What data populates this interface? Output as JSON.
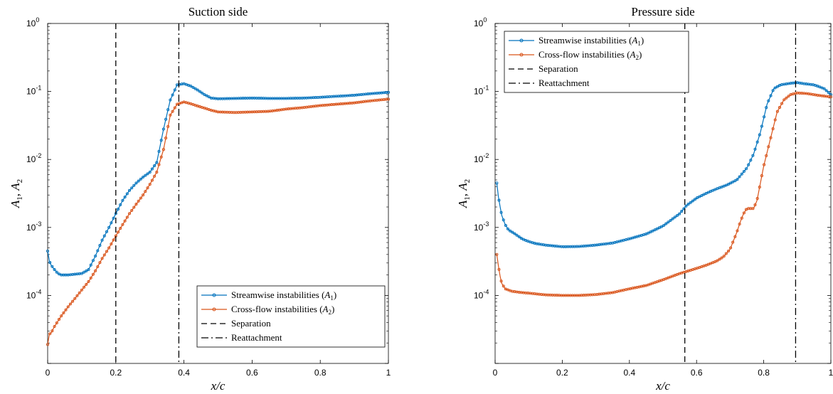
{
  "chart_data": [
    {
      "type": "line",
      "title": "Suction side",
      "xlabel": "x/c",
      "ylabel": "A1, A2",
      "xlim": [
        0,
        1
      ],
      "ylim": [
        1e-05,
        1
      ],
      "yscale": "log",
      "xticks": [
        "0",
        "0.2",
        "0.4",
        "0.6",
        "0.8",
        "1"
      ],
      "yticks": [
        {
          "base": "10",
          "exp": "-4"
        },
        {
          "base": "10",
          "exp": "-3"
        },
        {
          "base": "10",
          "exp": "-2"
        },
        {
          "base": "10",
          "exp": "-1"
        },
        {
          "base": "10",
          "exp": "0"
        }
      ],
      "legend_position": "bottom-right",
      "series": [
        {
          "name": "Streamwise instabilities (A1)",
          "color": "#0072BD",
          "points": [
            [
              0,
              0.00045
            ],
            [
              0.005,
              0.00032
            ],
            [
              0.01,
              0.00028
            ],
            [
              0.02,
              0.00024
            ],
            [
              0.03,
              0.00021
            ],
            [
              0.04,
              0.0002
            ],
            [
              0.06,
              0.0002
            ],
            [
              0.08,
              0.000205
            ],
            [
              0.1,
              0.00021
            ],
            [
              0.12,
              0.00024
            ],
            [
              0.14,
              0.00038
            ],
            [
              0.16,
              0.00065
            ],
            [
              0.18,
              0.001
            ],
            [
              0.2,
              0.0016
            ],
            [
              0.22,
              0.0025
            ],
            [
              0.24,
              0.0035
            ],
            [
              0.26,
              0.0045
            ],
            [
              0.28,
              0.0055
            ],
            [
              0.3,
              0.0065
            ],
            [
              0.32,
              0.009
            ],
            [
              0.34,
              0.028
            ],
            [
              0.36,
              0.075
            ],
            [
              0.38,
              0.125
            ],
            [
              0.4,
              0.13
            ],
            [
              0.42,
              0.12
            ],
            [
              0.44,
              0.105
            ],
            [
              0.46,
              0.09
            ],
            [
              0.48,
              0.08
            ],
            [
              0.5,
              0.078
            ],
            [
              0.55,
              0.079
            ],
            [
              0.6,
              0.08
            ],
            [
              0.65,
              0.079
            ],
            [
              0.7,
              0.079
            ],
            [
              0.75,
              0.08
            ],
            [
              0.8,
              0.082
            ],
            [
              0.85,
              0.085
            ],
            [
              0.9,
              0.088
            ],
            [
              0.95,
              0.093
            ],
            [
              1,
              0.097
            ]
          ]
        },
        {
          "name": "Cross-flow instabilities (A2)",
          "color": "#D95319",
          "points": [
            [
              0,
              1.9e-05
            ],
            [
              0.005,
              2.7e-05
            ],
            [
              0.01,
              2.8e-05
            ],
            [
              0.02,
              3.5e-05
            ],
            [
              0.04,
              5e-05
            ],
            [
              0.06,
              6.8e-05
            ],
            [
              0.08,
              9e-05
            ],
            [
              0.1,
              0.00012
            ],
            [
              0.12,
              0.00016
            ],
            [
              0.14,
              0.00023
            ],
            [
              0.16,
              0.00035
            ],
            [
              0.18,
              0.0005
            ],
            [
              0.2,
              0.00075
            ],
            [
              0.22,
              0.0011
            ],
            [
              0.24,
              0.0016
            ],
            [
              0.26,
              0.0022
            ],
            [
              0.28,
              0.003
            ],
            [
              0.3,
              0.0043
            ],
            [
              0.32,
              0.0065
            ],
            [
              0.34,
              0.014
            ],
            [
              0.36,
              0.045
            ],
            [
              0.38,
              0.065
            ],
            [
              0.4,
              0.07
            ],
            [
              0.42,
              0.066
            ],
            [
              0.44,
              0.061
            ],
            [
              0.46,
              0.057
            ],
            [
              0.48,
              0.053
            ],
            [
              0.5,
              0.05
            ],
            [
              0.55,
              0.049
            ],
            [
              0.6,
              0.05
            ],
            [
              0.65,
              0.051
            ],
            [
              0.7,
              0.055
            ],
            [
              0.75,
              0.058
            ],
            [
              0.8,
              0.062
            ],
            [
              0.85,
              0.065
            ],
            [
              0.9,
              0.068
            ],
            [
              0.95,
              0.073
            ],
            [
              1,
              0.077
            ]
          ]
        },
        {
          "name": "Separation",
          "style": "dashed",
          "x": 0.2
        },
        {
          "name": "Reattachment",
          "style": "dashdot",
          "x": 0.385
        }
      ]
    },
    {
      "type": "line",
      "title": "Pressure side",
      "xlabel": "x/c",
      "ylabel": "A1, A2",
      "xlim": [
        0,
        1
      ],
      "ylim": [
        1e-05,
        1
      ],
      "yscale": "log",
      "xticks": [
        "0",
        "0.2",
        "0.4",
        "0.6",
        "0.8",
        "1"
      ],
      "yticks": [
        {
          "base": "10",
          "exp": "-4"
        },
        {
          "base": "10",
          "exp": "-3"
        },
        {
          "base": "10",
          "exp": "-2"
        },
        {
          "base": "10",
          "exp": "-1"
        },
        {
          "base": "10",
          "exp": "0"
        }
      ],
      "legend_position": "top-left",
      "series": [
        {
          "name": "Streamwise instabilities (A1)",
          "color": "#0072BD",
          "points": [
            [
              0.005,
              0.0045
            ],
            [
              0.01,
              0.0028
            ],
            [
              0.015,
              0.002
            ],
            [
              0.02,
              0.0015
            ],
            [
              0.03,
              0.0011
            ],
            [
              0.04,
              0.00092
            ],
            [
              0.06,
              0.0008
            ],
            [
              0.08,
              0.00068
            ],
            [
              0.1,
              0.00062
            ],
            [
              0.12,
              0.00058
            ],
            [
              0.15,
              0.00055
            ],
            [
              0.2,
              0.00052
            ],
            [
              0.25,
              0.000525
            ],
            [
              0.3,
              0.00055
            ],
            [
              0.35,
              0.00059
            ],
            [
              0.4,
              0.00068
            ],
            [
              0.45,
              0.0008
            ],
            [
              0.5,
              0.00105
            ],
            [
              0.55,
              0.0016
            ],
            [
              0.57,
              0.0021
            ],
            [
              0.6,
              0.0027
            ],
            [
              0.63,
              0.0032
            ],
            [
              0.66,
              0.0037
            ],
            [
              0.69,
              0.0042
            ],
            [
              0.72,
              0.005
            ],
            [
              0.75,
              0.0075
            ],
            [
              0.77,
              0.012
            ],
            [
              0.79,
              0.025
            ],
            [
              0.81,
              0.065
            ],
            [
              0.83,
              0.11
            ],
            [
              0.85,
              0.125
            ],
            [
              0.88,
              0.132
            ],
            [
              0.9,
              0.135
            ],
            [
              0.92,
              0.13
            ],
            [
              0.95,
              0.125
            ],
            [
              0.98,
              0.11
            ],
            [
              1,
              0.09
            ]
          ]
        },
        {
          "name": "Cross-flow instabilities (A2)",
          "color": "#D95319",
          "points": [
            [
              0.005,
              0.0004
            ],
            [
              0.01,
              0.00027
            ],
            [
              0.015,
              0.00019
            ],
            [
              0.02,
              0.00015
            ],
            [
              0.03,
              0.000125
            ],
            [
              0.05,
              0.000115
            ],
            [
              0.08,
              0.00011
            ],
            [
              0.1,
              0.000108
            ],
            [
              0.15,
              0.000102
            ],
            [
              0.2,
              0.0001
            ],
            [
              0.25,
              0.0001
            ],
            [
              0.3,
              0.000103
            ],
            [
              0.35,
              0.00011
            ],
            [
              0.4,
              0.000125
            ],
            [
              0.45,
              0.00014
            ],
            [
              0.5,
              0.00017
            ],
            [
              0.55,
              0.00021
            ],
            [
              0.57,
              0.000225
            ],
            [
              0.6,
              0.00025
            ],
            [
              0.63,
              0.00028
            ],
            [
              0.66,
              0.00032
            ],
            [
              0.68,
              0.00037
            ],
            [
              0.7,
              0.00048
            ],
            [
              0.72,
              0.00085
            ],
            [
              0.73,
              0.0012
            ],
            [
              0.74,
              0.0016
            ],
            [
              0.75,
              0.0019
            ],
            [
              0.77,
              0.0019
            ],
            [
              0.78,
              0.0025
            ],
            [
              0.8,
              0.008
            ],
            [
              0.82,
              0.02
            ],
            [
              0.84,
              0.05
            ],
            [
              0.86,
              0.075
            ],
            [
              0.88,
              0.09
            ],
            [
              0.9,
              0.095
            ],
            [
              0.93,
              0.093
            ],
            [
              0.96,
              0.088
            ],
            [
              1,
              0.083
            ]
          ]
        },
        {
          "name": "Separation",
          "style": "dashed",
          "x": 0.565
        },
        {
          "name": "Reattachment",
          "style": "dashdot",
          "x": 0.895
        }
      ]
    }
  ]
}
